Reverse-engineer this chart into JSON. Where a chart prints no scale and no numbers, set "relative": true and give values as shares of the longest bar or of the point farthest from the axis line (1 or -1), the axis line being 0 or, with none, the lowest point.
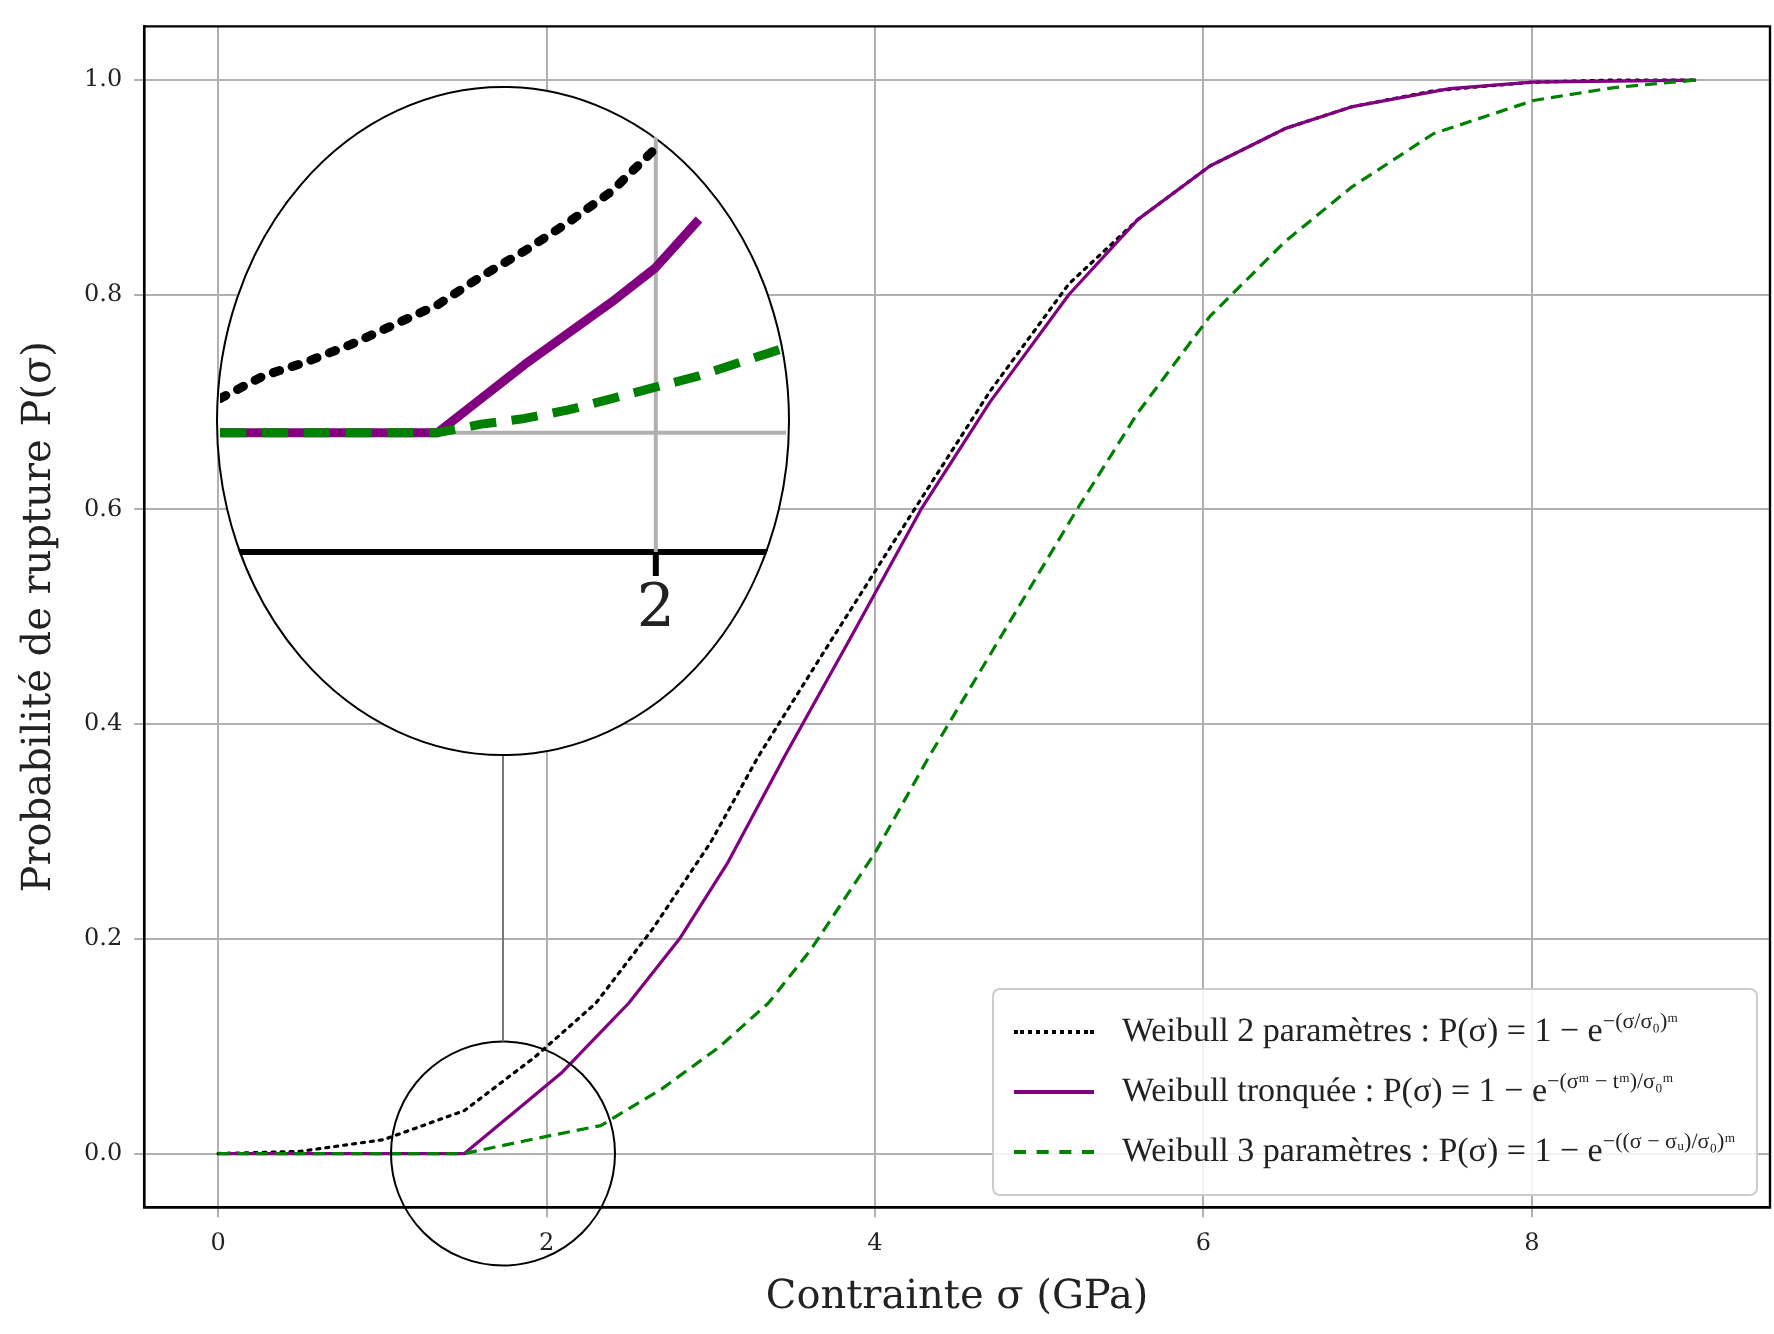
{
  "chart_data": [
    {
      "type": "line",
      "xlabel": "Contrainte σ (GPa)",
      "ylabel": "Probabilité de rupture P(σ)",
      "xlim": [
        -0.45,
        9.45
      ],
      "xticks": [
        0,
        2,
        4,
        6,
        8
      ],
      "ylim": [
        -0.05,
        1.05
      ],
      "yticks": [
        {
          "value": 0,
          "label": "0.0"
        },
        {
          "value": 0.2,
          "label": "0.2"
        },
        {
          "value": 0.4,
          "label": "0.4"
        },
        {
          "value": 0.6,
          "label": "0.6"
        },
        {
          "value": 0.8,
          "label": "0.8"
        },
        {
          "value": 1,
          "label": "1.0"
        }
      ],
      "grid": true,
      "legend": "bottom right",
      "marker": "none",
      "series": [
        {
          "name": "Weibull 2 paramètres : P(σ) = 1 − e$^{−(σ/σ₀)ᵐ}$",
          "color": "#000000",
          "line_style": "dotted",
          "x": [
            0,
            0.5,
            1.01,
            1.5,
            1.93,
            2.3,
            2.65,
            3.0,
            3.29,
            3.7,
            4.24,
            4.7,
            5.18,
            5.6,
            6.04,
            6.5,
            6.9,
            7.4,
            8.0,
            8.5,
            9.0
          ],
          "values": [
            0,
            0.002,
            0.013,
            0.04,
            0.09,
            0.14,
            0.21,
            0.29,
            0.37,
            0.47,
            0.6,
            0.71,
            0.81,
            0.87,
            0.92,
            0.955,
            0.975,
            0.99,
            0.998,
            1.0,
            1.0
          ]
        },
        {
          "name": "Weibull tronquée : P(σ) = 1 − e$^{−(σᵐ − tᵐ)/σ₀ᵐ}$",
          "color": "#800080",
          "line_style": "solid",
          "x": [
            0,
            1.5,
            2.09,
            2.5,
            2.81,
            3.1,
            3.45,
            3.85,
            4.28,
            4.7,
            5.18,
            5.6,
            6.04,
            6.5,
            6.9,
            7.5,
            8.0,
            9.0
          ],
          "values": [
            0,
            0,
            0.075,
            0.14,
            0.2,
            0.27,
            0.37,
            0.48,
            0.6,
            0.7,
            0.8,
            0.87,
            0.92,
            0.955,
            0.975,
            0.992,
            0.998,
            1.0
          ]
        },
        {
          "name": "Weibull 3 paramètres : P(σ) = 1 − e$^{−((σ − σᵤ)/σ₀)ᵐ}$",
          "color": "#008000",
          "line_style": "dashed",
          "x": [
            0,
            1.5,
            2.0,
            2.33,
            2.7,
            3.05,
            3.35,
            3.61,
            4.0,
            4.33,
            4.8,
            5.23,
            5.6,
            6.04,
            6.5,
            6.9,
            7.4,
            8.01,
            8.5,
            9.0
          ],
          "values": [
            0,
            0,
            0.016,
            0.026,
            0.06,
            0.099,
            0.14,
            0.19,
            0.28,
            0.37,
            0.49,
            0.6,
            0.69,
            0.78,
            0.85,
            0.9,
            0.95,
            0.981,
            0.993,
            1.0
          ]
        }
      ]
    },
    {
      "type": "line",
      "relative": true,
      "categories": [
        null,
        null,
        null,
        null,
        null,
        null,
        null,
        null,
        null,
        null,
        null,
        null,
        null,
        null
      ],
      "annotations": [
        "2"
      ],
      "marker": "none",
      "series": [
        {
          "color": "#000000",
          "line_style": "dotted",
          "values": [
            0.12,
            0.2,
            0.25,
            0.31,
            0.38,
            0.45,
            0.55,
            0.64,
            0.74,
            0.85,
            1,
            null,
            null,
            null
          ]
        },
        {
          "color": "#800080",
          "line_style": "solid",
          "values": [
            0,
            0,
            0,
            0,
            0,
            0,
            0.12,
            0.24,
            0.35,
            0.46,
            0.58,
            0.75,
            null,
            null
          ]
        },
        {
          "color": "#008000",
          "line_style": "dashed",
          "values": [
            0,
            0,
            0,
            0,
            0,
            0,
            0.03,
            0.05,
            0.08,
            0.12,
            0.16,
            0.2,
            0.25,
            0.3
          ]
        }
      ]
    }
  ]
}
